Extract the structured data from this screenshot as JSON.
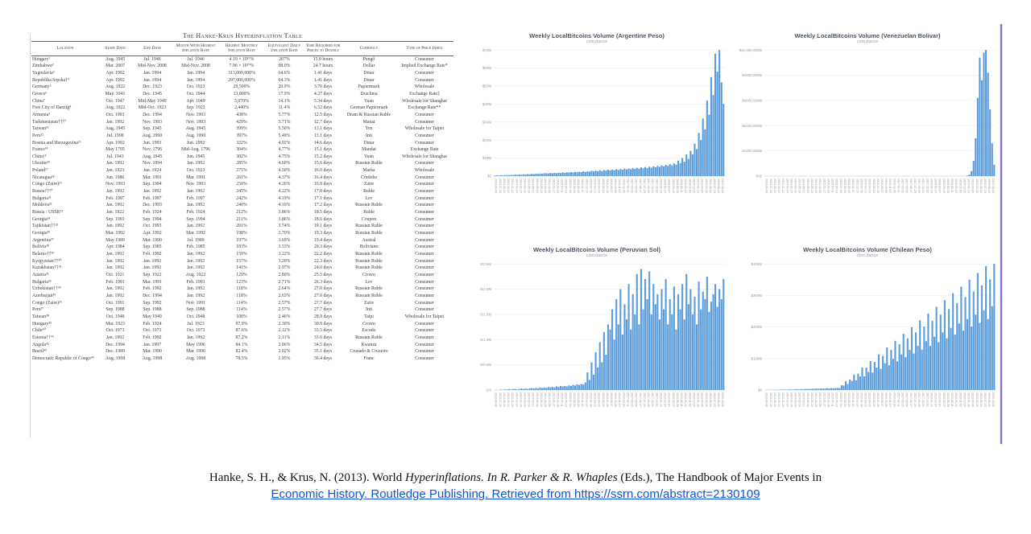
{
  "table": {
    "title": "The Hanke-Krus Hyperinflation Table",
    "columns": [
      "Location",
      "Start Date",
      "End Date",
      "Month With Highest Inflation Rate",
      "Highest Monthly Inflation Rate",
      "Equivalent Daily Inflation Rate",
      "Time Required for Prices to Double",
      "Currency",
      "Type of Price Index"
    ],
    "rows": [
      [
        "Hungary¹",
        "Aug. 1945",
        "Jul. 1946",
        "Jul. 1946",
        "4.19 × 10¹⁶%",
        "207%",
        "15.0 hours",
        "Pengő",
        "Consumer"
      ],
      [
        "Zimbabwe²",
        "Mar. 2007",
        "Mid-Nov. 2008",
        "Mid-Nov. 2008",
        "7.96 × 10¹⁰%",
        "98.0%",
        "24.7 hours",
        "Dollar",
        "Implied Exchange Rate*"
      ],
      [
        "Yugoslavia³",
        "Apr. 1992",
        "Jan. 1994",
        "Jan. 1994",
        "313,000,000%",
        "64.6%",
        "1.41 days",
        "Dinar",
        "Consumer"
      ],
      [
        "Republika Srpska†⁴",
        "Apr. 1992",
        "Jan. 1994",
        "Jan. 1994",
        "297,000,000%",
        "64.3%",
        "1.41 days",
        "Dinar",
        "Consumer"
      ],
      [
        "Germany⁵",
        "Aug. 1922",
        "Dec. 1923",
        "Oct. 1923",
        "29,500%",
        "20.9%",
        "3.70 days",
        "Papiermark",
        "Wholesale"
      ],
      [
        "Greece⁶",
        "May. 1941",
        "Dec. 1945",
        "Oct. 1944",
        "13,800%",
        "17.9%",
        "4.27 days",
        "Drachma",
        "Exchange Rate‡"
      ],
      [
        "China⁷",
        "Oct. 1947",
        "Mid-May 1949",
        "Apr. 1949",
        "5,070%",
        "14.1%",
        "5.34 days",
        "Yuan",
        "Wholesale for Shanghai"
      ],
      [
        "Free City of Danzig⁸",
        "Aug. 1922",
        "Mid-Oct. 1923",
        "Sep. 1923",
        "2,440%",
        "11.4%",
        "6.52 days",
        "German Papiermark",
        "Exchange Rate**"
      ],
      [
        "Armenia⁹",
        "Oct. 1993",
        "Dec. 1994",
        "Nov. 1993",
        "438%",
        "5.77%",
        "12.5 days",
        "Dram & Russian Ruble",
        "Consumer"
      ],
      [
        "Turkmenistan††¹⁰",
        "Jan. 1992",
        "Nov. 1993",
        "Nov. 1993",
        "429%",
        "5.71%",
        "12.7 days",
        "Manat",
        "Consumer"
      ],
      [
        "Taiwan¹¹",
        "Aug. 1945",
        "Sep. 1945",
        "Aug. 1945",
        "399%",
        "5.50%",
        "13.1 days",
        "Yen",
        "Wholesale for Taipei"
      ],
      [
        "Peru¹²",
        "Jul. 1990",
        "Aug. 1990",
        "Aug. 1990",
        "397%",
        "5.49%",
        "13.1 days",
        "Inti",
        "Consumer"
      ],
      [
        "Bosnia and Herzegovina¹³",
        "Apr. 1992",
        "Jun. 1993",
        "Jun. 1992",
        "322%",
        "4.92%",
        "14.6 days",
        "Dinar",
        "Consumer"
      ],
      [
        "France¹⁴",
        "May 1795",
        "Nov. 1796",
        "Mid-Aug. 1796",
        "304%",
        "4.77%",
        "15.1 days",
        "Mandat",
        "Exchange Rate"
      ],
      [
        "China¹⁵",
        "Jul. 1943",
        "Aug. 1945",
        "Jun. 1945",
        "302%",
        "4.75%",
        "15.2 days",
        "Yuan",
        "Wholesale for Shanghai"
      ],
      [
        "Ukraine¹⁶",
        "Jan. 1992",
        "Nov. 1994",
        "Jan. 1992",
        "285%",
        "4.60%",
        "15.6 days",
        "Russian Ruble",
        "Consumer"
      ],
      [
        "Poland¹⁷",
        "Jan. 1923",
        "Jan. 1924",
        "Oct. 1923",
        "275%",
        "4.50%",
        "16.0 days",
        "Marka",
        "Wholesale"
      ],
      [
        "Nicaragua¹⁸",
        "Jun. 1986",
        "Mar. 1991",
        "Mar. 1991",
        "261%",
        "4.37%",
        "16.4 days",
        "Córdoba",
        "Consumer"
      ],
      [
        "Congo (Zaire)¹⁹",
        "Nov. 1993",
        "Sep. 1994",
        "Nov. 1993",
        "250%",
        "4.26%",
        "16.8 days",
        "Zaïre",
        "Consumer"
      ],
      [
        "Russia††²⁰",
        "Jan. 1992",
        "Jan. 1992",
        "Jan. 1992",
        "245%",
        "4.22%",
        "17.0 days",
        "Ruble",
        "Consumer"
      ],
      [
        "Bulgaria²¹",
        "Feb. 1997",
        "Feb. 1997",
        "Feb. 1997",
        "242%",
        "4.19%",
        "17.1 days",
        "Lev",
        "Consumer"
      ],
      [
        "Moldova²²",
        "Jan. 1992",
        "Dec. 1993",
        "Jan. 1992",
        "240%",
        "4.16%",
        "17.2 days",
        "Russian Ruble",
        "Consumer"
      ],
      [
        "Russia / USSR²³",
        "Jan. 1922",
        "Feb. 1924",
        "Feb. 1924",
        "212%",
        "3.86%",
        "18.5 days",
        "Ruble",
        "Consumer"
      ],
      [
        "Georgia²⁴",
        "Sep. 1993",
        "Sep. 1994",
        "Sep. 1994",
        "211%",
        "3.86%",
        "18.6 days",
        "Coupon",
        "Consumer"
      ],
      [
        "Tajikistan††²⁵",
        "Jan. 1992",
        "Oct. 1993",
        "Jan. 1992",
        "201%",
        "3.74%",
        "19.1 days",
        "Russian Ruble",
        "Consumer"
      ],
      [
        "Georgia²⁶",
        "Mar. 1992",
        "Apr. 1992",
        "Mar. 1992",
        "198%",
        "3.70%",
        "19.3 days",
        "Russian Ruble",
        "Consumer"
      ],
      [
        "Argentina²⁷",
        "May 1989",
        "Mar. 1990",
        "Jul. 1989",
        "197%",
        "3.69%",
        "19.4 days",
        "Austral",
        "Consumer"
      ],
      [
        "Bolivia²⁸",
        "Apr. 1984",
        "Sep. 1985",
        "Feb. 1985",
        "183%",
        "3.53%",
        "20.3 days",
        "Boliviano",
        "Consumer"
      ],
      [
        "Belarus††²⁹",
        "Jan. 1992",
        "Feb. 1992",
        "Jan. 1992",
        "159%",
        "3.22%",
        "22.2 days",
        "Russian Ruble",
        "Consumer"
      ],
      [
        "Kyrgyzstan††³⁰",
        "Jan. 1992",
        "Jan. 1992",
        "Jan. 1992",
        "157%",
        "3.20%",
        "22.3 days",
        "Russian Ruble",
        "Consumer"
      ],
      [
        "Kazakhstan††³¹",
        "Jan. 1992",
        "Jan. 1992",
        "Jan. 1992",
        "141%",
        "2.97%",
        "24.0 days",
        "Russian Ruble",
        "Consumer"
      ],
      [
        "Austria³²",
        "Oct. 1921",
        "Sep. 1922",
        "Aug. 1922",
        "129%",
        "2.80%",
        "25.5 days",
        "Crown",
        "Consumer"
      ],
      [
        "Bulgaria³³",
        "Feb. 1991",
        "Mar. 1991",
        "Feb. 1991",
        "123%",
        "2.71%",
        "26.3 days",
        "Lev",
        "Consumer"
      ],
      [
        "Uzbekistan††³⁴",
        "Jan. 1992",
        "Feb. 1992",
        "Jan. 1992",
        "118%",
        "2.64%",
        "27.0 days",
        "Russian Ruble",
        "Consumer"
      ],
      [
        "Azerbaijan³⁵",
        "Jan. 1992",
        "Dec. 1994",
        "Jan. 1992",
        "118%",
        "2.63%",
        "27.0 days",
        "Russian Ruble",
        "Consumer"
      ],
      [
        "Congo (Zaire)³⁶",
        "Oct. 1991",
        "Sep. 1992",
        "Nov. 1991",
        "114%",
        "2.57%",
        "27.7 days",
        "Zaïre",
        "Consumer"
      ],
      [
        "Peru³⁷",
        "Sep. 1988",
        "Sep. 1988",
        "Sep. 1988",
        "114%",
        "2.57%",
        "27.7 days",
        "Inti",
        "Consumer"
      ],
      [
        "Taiwan³⁸",
        "Oct. 1948",
        "May 1949",
        "Oct. 1948",
        "108%",
        "2.46%",
        "28.9 days",
        "Taipi",
        "Wholesale for Taipei"
      ],
      [
        "Hungary³⁹",
        "Mar. 1923",
        "Feb. 1924",
        "Jul. 1923",
        "97.9%",
        "2.30%",
        "30.9 days",
        "Crown",
        "Consumer"
      ],
      [
        "Chile⁴⁰",
        "Oct. 1973",
        "Oct. 1973",
        "Oct. 1973",
        "87.6%",
        "2.12%",
        "33.5 days",
        "Escudo",
        "Consumer"
      ],
      [
        "Estonia††⁴¹",
        "Jan. 1992",
        "Feb. 1992",
        "Jan. 1992",
        "87.2%",
        "2.11%",
        "33.6 days",
        "Russian Ruble",
        "Consumer"
      ],
      [
        "Angola⁴²",
        "Dec. 1994",
        "Jan. 1997",
        "May 1996",
        "84.1%",
        "2.06%",
        "34.5 days",
        "Kwanza",
        "Consumer"
      ],
      [
        "Brazil⁴³",
        "Dec. 1989",
        "Mar. 1990",
        "Mar. 1990",
        "82.4%",
        "2.02%",
        "35.1 days",
        "Cruzado & Cruzeiro",
        "Consumer"
      ],
      [
        "Democratic Republic of Congo⁴⁴",
        "Aug. 1998",
        "Aug. 1998",
        "Aug. 1998",
        "78.5%",
        "1.95%",
        "36.4 days",
        "Franc",
        "Consumer"
      ]
    ]
  },
  "shared_x_labels": [
    "2013-06-08",
    "2013-07-20",
    "2013-08-31",
    "2013-10-12",
    "2013-11-23",
    "2014-01-04",
    "2014-02-15",
    "2014-03-29",
    "2014-05-10",
    "2014-06-21",
    "2014-08-02",
    "2014-09-13",
    "2014-10-25",
    "2014-12-06",
    "2015-01-17",
    "2015-02-28",
    "2015-04-11",
    "2015-05-23",
    "2015-07-04",
    "2015-08-15",
    "2015-09-26",
    "2015-11-07",
    "2015-12-19",
    "2016-01-30",
    "2016-03-12",
    "2016-04-23",
    "2016-06-04",
    "2016-07-16",
    "2016-08-27",
    "2016-10-08",
    "2016-11-19",
    "2016-12-31",
    "2017-02-11",
    "2017-03-25",
    "2017-05-06",
    "2017-06-17",
    "2017-07-29",
    "2017-09-09",
    "2017-10-21",
    "2017-12-02",
    "2018-01-13",
    "2018-02-24",
    "2018-04-07",
    "2018-05-19",
    "2018-06-30",
    "2018-08-11",
    "2018-09-22",
    "2018-11-03",
    "2018-12-15",
    "2019-01-26",
    "2019-03-09",
    "2019-04-20",
    "2019-06-01",
    "2019-07-13",
    "2019-08-24",
    "2019-10-05"
  ],
  "chart_data": [
    {
      "type": "bar",
      "title": "Weekly LocalBitcoins Volume (Argentine Peso)",
      "subtitle": "coin.dance",
      "bar_color": "#5b9cdb",
      "legend_position": "none",
      "grid": true,
      "y_ticks": [
        "$70M",
        "$60M",
        "$50M",
        "$40M",
        "$30M",
        "$20M",
        "$10M",
        "$0"
      ],
      "ymax": 70,
      "ylim": [
        0,
        70
      ],
      "x": "shared_x_labels",
      "values": [
        0.3,
        0.4,
        0.3,
        0.5,
        0.4,
        0.5,
        0.6,
        0.5,
        0.7,
        0.6,
        0.8,
        0.7,
        0.9,
        0.8,
        1.0,
        0.9,
        1.1,
        1.0,
        1.2,
        1.1,
        1.3,
        1.2,
        1.4,
        1.3,
        1.5,
        1.6,
        1.4,
        1.7,
        1.5,
        1.8,
        1.6,
        1.9,
        1.7,
        2.0,
        1.8,
        2.1,
        1.9,
        2.2,
        2.0,
        2.3,
        2.1,
        2.4,
        2.2,
        2.6,
        2.3,
        2.7,
        2.5,
        2.9,
        2.6,
        3.0,
        2.7,
        3.2,
        2.8,
        3.3,
        3.0,
        3.5,
        3.1,
        3.6,
        3.2,
        3.8,
        3.4,
        3.9,
        3.5,
        4.1,
        3.7,
        4.2,
        3.8,
        4.4,
        4.0,
        4.6,
        4.1,
        4.8,
        4.3,
        5.0,
        4.5,
        5.2,
        4.7,
        5.4,
        4.9,
        5.6,
        5.1,
        5.9,
        5.4,
        6.2,
        5.7,
        6.6,
        6.0,
        7.0,
        6.4,
        8.5,
        7.2,
        10.0,
        8.0,
        12.0,
        9.5,
        14.0,
        12.0,
        18.0,
        15.0,
        24.0,
        20.0,
        32.0,
        26.0,
        42.0,
        34.0,
        55.0,
        45.0,
        68.0,
        58.0,
        70.0,
        52.0,
        40.0
      ]
    },
    {
      "type": "bar",
      "title": "Weekly LocalBitcoins Volume (Venezuelan Bolivar)",
      "subtitle": "coin.dance",
      "bar_color": "#5b9cdb",
      "legend_position": "none",
      "grid": true,
      "y_ticks": [
        "Bs1,000,000M",
        "Bs800,000M",
        "Bs600,000M",
        "Bs400,000M",
        "Bs200,000M",
        "Bs0"
      ],
      "ymax": 1000000,
      "ylim": [
        0,
        1000000
      ],
      "x": "shared_x_labels",
      "values": [
        0,
        0,
        0,
        0,
        0,
        0,
        0,
        0,
        0,
        0,
        0,
        0,
        0,
        0,
        0,
        0,
        0,
        0,
        0,
        0,
        0,
        0,
        0,
        0,
        0,
        0,
        0,
        0,
        0,
        0,
        0,
        0,
        0,
        0,
        0,
        0,
        0,
        0,
        0,
        0,
        0,
        0,
        0,
        0,
        0,
        0,
        0,
        0,
        0,
        0,
        0,
        0,
        0,
        0,
        0,
        0,
        0,
        0,
        0,
        0,
        0,
        0,
        0,
        0,
        0,
        0,
        0,
        0,
        0,
        0,
        0,
        0,
        0,
        0,
        0,
        0,
        0,
        0,
        0,
        0,
        0,
        0,
        0,
        0,
        0,
        0,
        0,
        0,
        0,
        0,
        0,
        0,
        0,
        0,
        0,
        0,
        500,
        1500,
        4000,
        12000,
        40000,
        120000,
        300000,
        620000,
        940000,
        760000,
        980000,
        1000000,
        820000,
        530000,
        260000,
        90000
      ]
    },
    {
      "type": "bar",
      "title": "Weekly LocalBitcoins Volume (Peruvian Sol)",
      "subtitle": "coin.dance",
      "bar_color": "#5b9cdb",
      "legend_position": "none",
      "grid": true,
      "y_ticks": [
        "S/2.5M",
        "S/2.0M",
        "S/1.5M",
        "S/1.0M",
        "S/0.5M",
        "S/0"
      ],
      "ymax": 2.5,
      "ylim": [
        0,
        2.5
      ],
      "x": "shared_x_labels",
      "values": [
        0,
        0,
        0,
        0.01,
        0,
        0.01,
        0.01,
        0.02,
        0.01,
        0.02,
        0.02,
        0.01,
        0.02,
        0.03,
        0.02,
        0.03,
        0.02,
        0.03,
        0.04,
        0.03,
        0.04,
        0.03,
        0.05,
        0.04,
        0.05,
        0.04,
        0.06,
        0.05,
        0.06,
        0.05,
        0.07,
        0.06,
        0.08,
        0.07,
        0.08,
        0.07,
        0.09,
        0.08,
        0.1,
        0.09,
        0.11,
        0.1,
        0.12,
        0.11,
        0.15,
        0.35,
        0.2,
        0.55,
        0.3,
        0.75,
        0.45,
        0.95,
        0.55,
        1.15,
        0.7,
        1.3,
        1.2,
        1.6,
        1.0,
        1.8,
        1.3,
        2.0,
        1.1,
        1.7,
        1.4,
        2.1,
        1.2,
        1.9,
        1.5,
        2.3,
        1.3,
        2.4,
        1.6,
        2.2,
        1.8,
        2.35,
        1.5,
        2.1,
        1.7,
        1.9,
        1.4,
        2.0,
        1.6,
        2.2,
        1.3,
        1.8,
        1.5,
        2.05,
        1.2,
        1.9,
        1.6,
        2.1,
        1.4,
        2.3,
        1.7,
        2.0,
        1.5,
        1.85,
        1.3,
        2.15,
        1.6,
        1.95,
        1.8,
        2.25,
        1.55,
        1.75,
        1.9,
        2.1,
        1.65,
        2.0,
        1.8,
        2.2
      ]
    },
    {
      "type": "bar",
      "title": "Weekly LocalBitcoins Volume (Chilean Peso)",
      "subtitle": "coin.dance",
      "bar_color": "#5b9cdb",
      "legend_position": "none",
      "grid": true,
      "y_ticks": [
        "$400M",
        "$300M",
        "$200M",
        "$100M",
        "$0"
      ],
      "ymax": 400,
      "ylim": [
        0,
        400
      ],
      "x": "shared_x_labels",
      "values": [
        0,
        0,
        0.5,
        0,
        0.5,
        1,
        0.5,
        1,
        1,
        1.5,
        1,
        1.5,
        2,
        1.5,
        2,
        2.5,
        2,
        3,
        2.5,
        3,
        3.5,
        3,
        4,
        3.5,
        4,
        4.5,
        4,
        5,
        4.5,
        5,
        5.5,
        5,
        6,
        5.5,
        6,
        6.5,
        6,
        15,
        14,
        28,
        19,
        33,
        29,
        49,
        31,
        52,
        43,
        71,
        43,
        71,
        57,
        92,
        55,
        89,
        71,
        113,
        67,
        108,
        85,
        135,
        79,
        127,
        99,
        156,
        91,
        145,
        113,
        178,
        104,
        164,
        127,
        199,
        116,
        183,
        140,
        221,
        128,
        201,
        155,
        242,
        140,
        220,
        169,
        264,
        152,
        239,
        183,
        285,
        164,
        257,
        197,
        307,
        176,
        276,
        211,
        328,
        189,
        295,
        225,
        350,
        201,
        313,
        239,
        371,
        213,
        332,
        253,
        393,
        225,
        351,
        266,
        400
      ]
    }
  ],
  "citation": {
    "line1_pre": "Hanke, S. H., & Krus, N. (2013). World ",
    "line1_italic": "Hyperinflations. In R. Parker & R. Whaples",
    "line1_post": " (Eds.), The Handbook of Major Events in",
    "line2_link": "Economic History. Routledge Publishing. Retrieved from https://ssrn.com/abstract=2130109"
  },
  "colors": {
    "bar_blue": "#5b9cdb",
    "link_blue": "#1155cc",
    "scrub_line_purple": "#8b6fc0"
  }
}
